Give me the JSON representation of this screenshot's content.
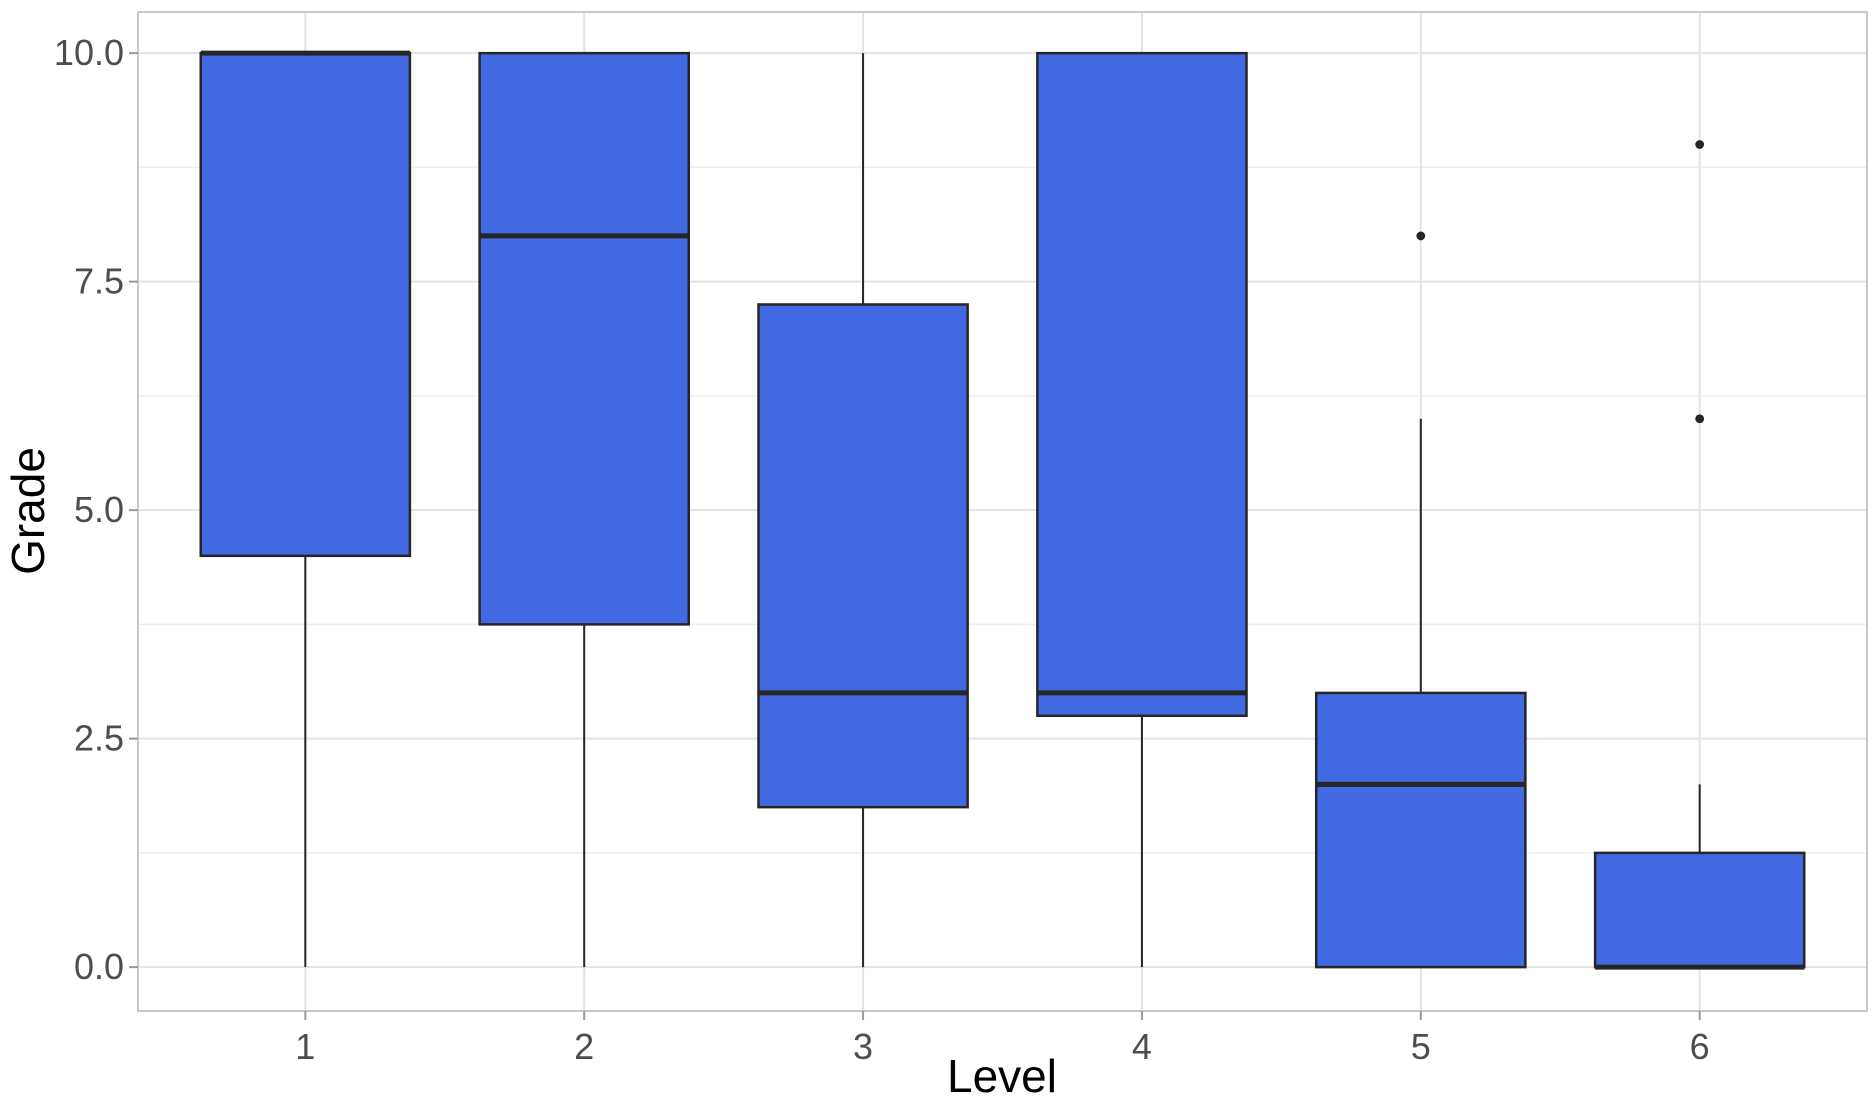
{
  "figure": {
    "background": "#ffffff"
  },
  "chart_data": {
    "type": "boxplot",
    "title": "",
    "xlabel": "Level",
    "ylabel": "Grade",
    "categories": [
      "1",
      "2",
      "3",
      "4",
      "5",
      "6"
    ],
    "boxes": [
      {
        "category": "1",
        "whisker_low": 0,
        "q1": 4.5,
        "median": 10,
        "q3": 10,
        "whisker_high": 10,
        "outliers": []
      },
      {
        "category": "2",
        "whisker_low": 0,
        "q1": 3.75,
        "median": 8,
        "q3": 10,
        "whisker_high": 10,
        "outliers": []
      },
      {
        "category": "3",
        "whisker_low": 0,
        "q1": 1.75,
        "median": 3,
        "q3": 7.25,
        "whisker_high": 10,
        "outliers": []
      },
      {
        "category": "4",
        "whisker_low": 0,
        "q1": 2.75,
        "median": 3,
        "q3": 10,
        "whisker_high": 10,
        "outliers": []
      },
      {
        "category": "5",
        "whisker_low": 0,
        "q1": 0,
        "median": 2,
        "q3": 3,
        "whisker_high": 6,
        "outliers": [
          8
        ]
      },
      {
        "category": "6",
        "whisker_low": 0,
        "q1": 0,
        "median": 0,
        "q3": 1.25,
        "whisker_high": 2,
        "outliers": [
          6,
          9
        ]
      }
    ],
    "y_axis": {
      "ticks": [
        0,
        2.5,
        5,
        7.5,
        10
      ],
      "tick_labels": [
        "0.0",
        "2.5",
        "5.0",
        "7.5",
        "10.0"
      ],
      "minor_ticks": [
        1.25,
        3.75,
        6.25,
        8.75
      ],
      "lim": [
        -0.48,
        10.45
      ]
    },
    "x_axis": {
      "positions": [
        1,
        2,
        3,
        4,
        5,
        6
      ],
      "lim": [
        0.4,
        6.6
      ],
      "box_width_units": 0.75
    },
    "grid": {
      "major": true,
      "minor_horizontal": true,
      "vertical_major": true
    },
    "legend": "none",
    "style": {
      "box_fill": "#4169E1",
      "line_color": "#262626",
      "grid_major_color": "#e3e3e3",
      "grid_minor_color": "#eeeeee",
      "panel_border_color": "#c8c8c8",
      "tick_color": "#999999",
      "tick_label_color": "#4d4d4d",
      "axis_title_color": "#000000",
      "outlier_color": "#262626",
      "background": "#ffffff"
    }
  }
}
